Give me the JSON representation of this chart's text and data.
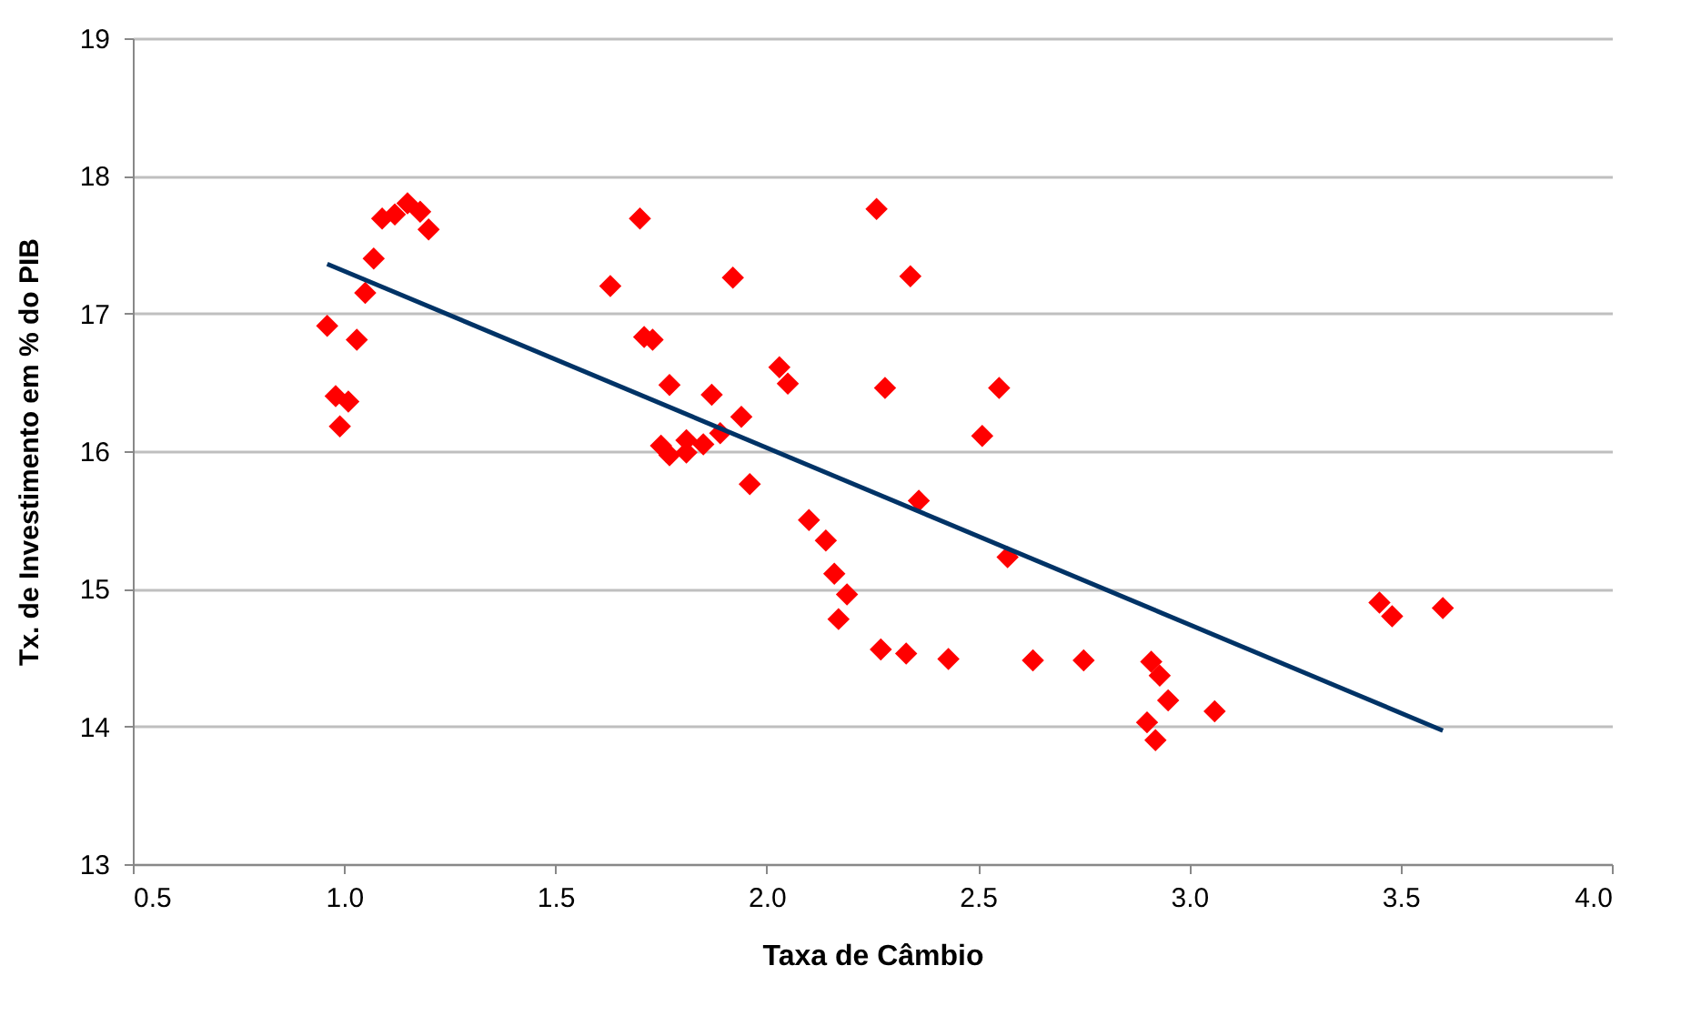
{
  "chart_data": {
    "type": "scatter",
    "xlabel": "Taxa de  Câmbio",
    "ylabel": "Tx. de Investimento  em % do PIB",
    "xlim": [
      0.5,
      4.0
    ],
    "xticks": [
      {
        "value": 0.5,
        "label": "0.5"
      },
      {
        "value": 1,
        "label": "1.0"
      },
      {
        "value": 1.5,
        "label": "1.5"
      },
      {
        "value": 2,
        "label": "2.0"
      },
      {
        "value": 2.5,
        "label": "2.5"
      },
      {
        "value": 3,
        "label": "3.0"
      },
      {
        "value": 3.5,
        "label": "3.5"
      },
      {
        "value": 4,
        "label": "4.0"
      }
    ],
    "ylim": [
      13,
      19
    ],
    "yticks": [
      13,
      14,
      15,
      16,
      17,
      18,
      19
    ],
    "grid": "y",
    "marker": "diamond",
    "series": [
      {
        "color": "#ff0000",
        "x": [
          0.96,
          0.98,
          0.99,
          1.01,
          1.03,
          1.05,
          1.07,
          1.09,
          1.12,
          1.15,
          1.18,
          1.2,
          1.63,
          1.7,
          1.71,
          1.73,
          1.77,
          1.75,
          1.77,
          1.81,
          1.81,
          1.85,
          1.87,
          1.89,
          1.92,
          1.94,
          1.96,
          2.03,
          2.05,
          2.1,
          2.14,
          2.16,
          2.19,
          2.17,
          2.26,
          2.27,
          2.28,
          2.33,
          2.34,
          2.36,
          2.43,
          2.51,
          2.55,
          2.57,
          2.63,
          2.75,
          2.91,
          2.93,
          2.95,
          2.9,
          2.92,
          3.06,
          3.45,
          3.48,
          3.6
        ],
        "values": [
          16.91,
          16.4,
          16.18,
          16.36,
          16.81,
          17.15,
          17.4,
          17.69,
          17.72,
          17.8,
          17.74,
          17.61,
          17.2,
          17.69,
          16.83,
          16.81,
          16.48,
          16.04,
          15.97,
          16.08,
          15.99,
          16.05,
          16.41,
          16.13,
          17.26,
          16.25,
          15.76,
          16.61,
          16.49,
          15.5,
          15.35,
          15.11,
          14.96,
          14.78,
          17.76,
          14.56,
          16.46,
          14.53,
          17.27,
          15.64,
          14.49,
          16.11,
          16.46,
          15.23,
          14.48,
          14.48,
          14.47,
          14.37,
          14.19,
          14.03,
          13.9,
          14.11,
          14.9,
          14.8,
          14.86
        ]
      },
      {
        "type": "line",
        "color": "#003366",
        "marker": "none",
        "x": [
          0.96,
          3.6
        ],
        "values": [
          17.36,
          13.97
        ]
      }
    ]
  }
}
